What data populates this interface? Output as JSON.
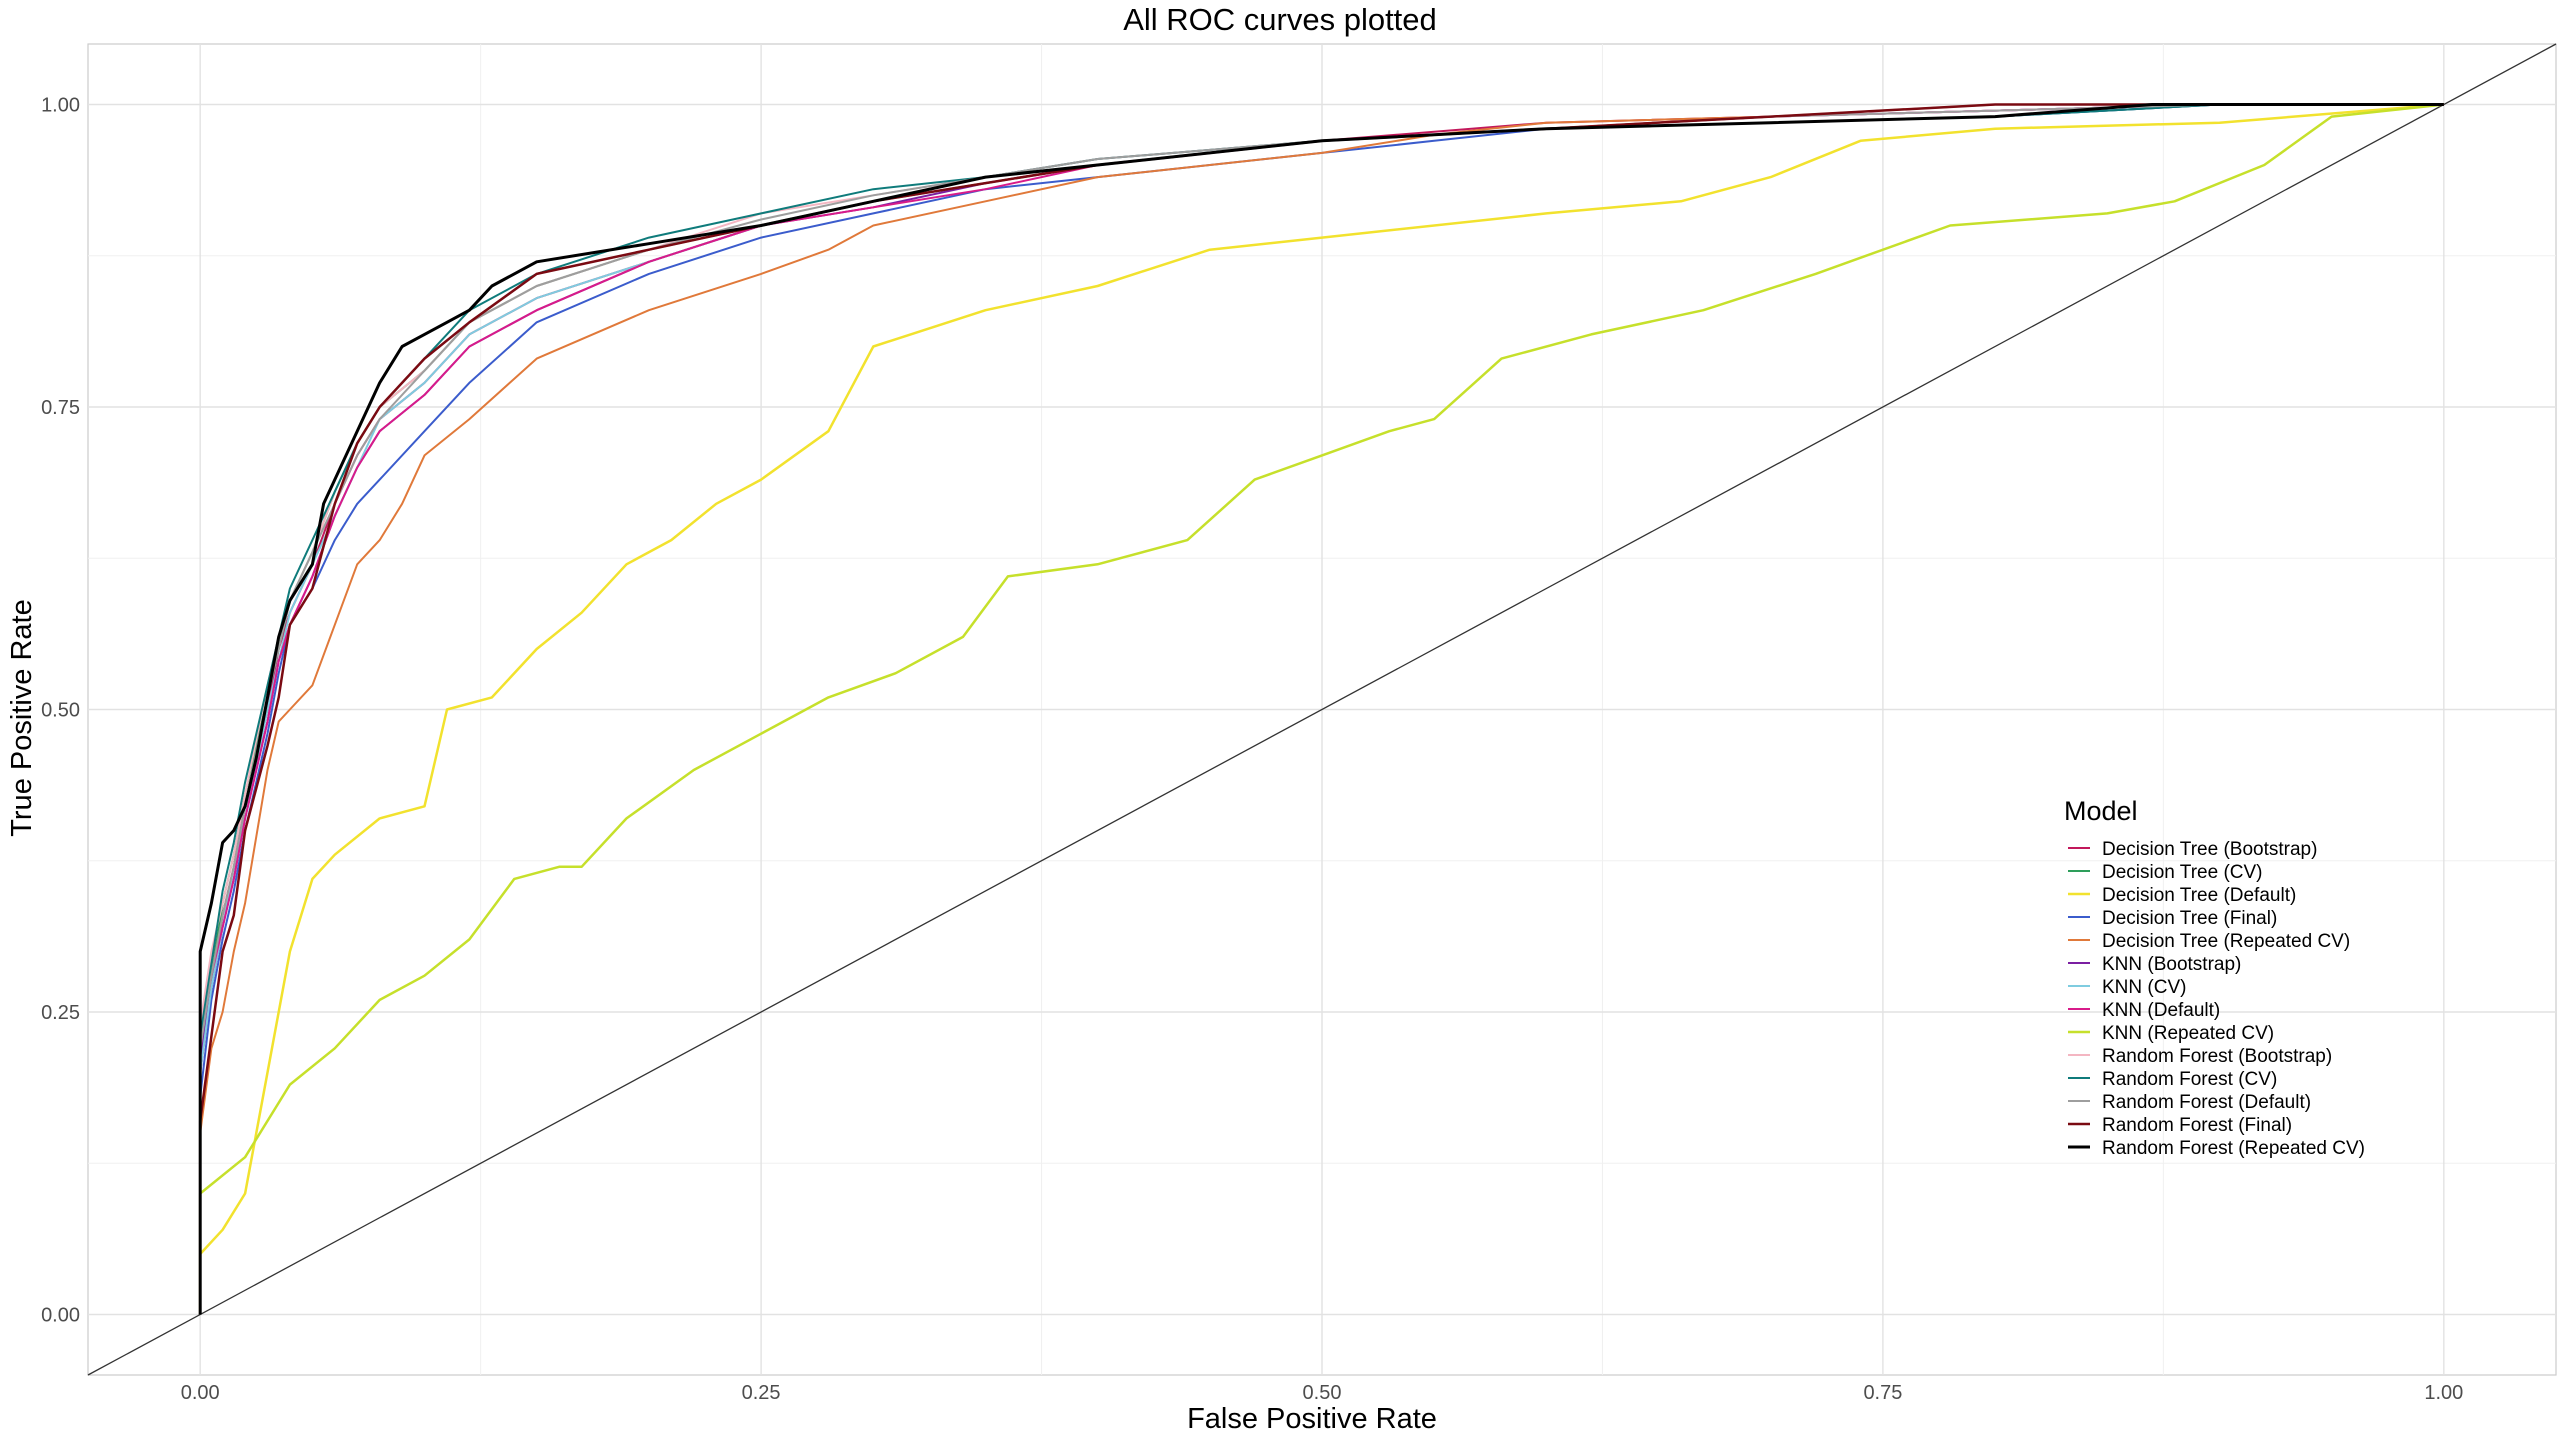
{
  "chart_data": {
    "type": "line",
    "title": "All ROC curves plotted",
    "xlabel": "False Positive Rate",
    "ylabel": "True Positive Rate",
    "xlim": [
      -0.05,
      1.05
    ],
    "ylim": [
      -0.05,
      1.05
    ],
    "x_ticks": [
      0.0,
      0.25,
      0.5,
      0.75,
      1.0
    ],
    "y_ticks": [
      0.0,
      0.25,
      0.5,
      0.75,
      1.0
    ],
    "x_tick_labels": [
      "0.00",
      "0.25",
      "0.50",
      "0.75",
      "1.00"
    ],
    "y_tick_labels": [
      "0.00",
      "0.25",
      "0.50",
      "0.75",
      "1.00"
    ],
    "grid": true,
    "legend_title": "Model",
    "legend_position": "right",
    "reference_line": {
      "x": [
        -0.05,
        1.05
      ],
      "y": [
        -0.05,
        1.05
      ],
      "color": "#333333"
    },
    "series": [
      {
        "name": "Decision Tree (Bootstrap)",
        "color": "#C2185B",
        "width": 2,
        "x": [
          0,
          0,
          0.005,
          0.01,
          0.015,
          0.02,
          0.03,
          0.035,
          0.04,
          0.05,
          0.06,
          0.07,
          0.08,
          0.1,
          0.12,
          0.15,
          0.2,
          0.25,
          0.3,
          0.35,
          0.4,
          0.5,
          0.6,
          0.7,
          0.8,
          0.9,
          1
        ],
        "y": [
          0,
          0.2,
          0.27,
          0.33,
          0.37,
          0.42,
          0.5,
          0.55,
          0.58,
          0.62,
          0.67,
          0.71,
          0.74,
          0.77,
          0.81,
          0.84,
          0.87,
          0.9,
          0.92,
          0.935,
          0.95,
          0.97,
          0.985,
          0.99,
          0.995,
          1,
          1
        ]
      },
      {
        "name": "Decision Tree (CV)",
        "color": "#2E9E5B",
        "width": 2,
        "x": [
          0,
          0,
          0.005,
          0.01,
          0.015,
          0.02,
          0.03,
          0.035,
          0.04,
          0.05,
          0.06,
          0.07,
          0.08,
          0.1,
          0.12,
          0.15,
          0.2,
          0.25,
          0.3,
          0.35,
          0.4,
          0.5,
          0.6,
          0.7,
          0.8,
          0.9,
          1
        ],
        "y": [
          0,
          0.22,
          0.28,
          0.34,
          0.38,
          0.43,
          0.51,
          0.55,
          0.59,
          0.63,
          0.68,
          0.72,
          0.75,
          0.78,
          0.82,
          0.85,
          0.88,
          0.9,
          0.92,
          0.935,
          0.95,
          0.97,
          0.98,
          0.985,
          0.99,
          1,
          1
        ]
      },
      {
        "name": "Decision Tree (Default)",
        "color": "#F2E22E",
        "width": 2.5,
        "x": [
          0,
          0,
          0.01,
          0.02,
          0.03,
          0.04,
          0.05,
          0.06,
          0.08,
          0.1,
          0.11,
          0.13,
          0.15,
          0.17,
          0.19,
          0.21,
          0.23,
          0.25,
          0.28,
          0.3,
          0.35,
          0.4,
          0.45,
          0.5,
          0.6,
          0.66,
          0.7,
          0.74,
          0.8,
          0.9,
          1
        ],
        "y": [
          0,
          0.05,
          0.07,
          0.1,
          0.2,
          0.3,
          0.36,
          0.38,
          0.41,
          0.42,
          0.5,
          0.51,
          0.55,
          0.58,
          0.62,
          0.64,
          0.67,
          0.69,
          0.73,
          0.8,
          0.83,
          0.85,
          0.88,
          0.89,
          0.91,
          0.92,
          0.94,
          0.97,
          0.98,
          0.985,
          1
        ]
      },
      {
        "name": "Decision Tree (Final)",
        "color": "#3B5CCC",
        "width": 2,
        "x": [
          0,
          0,
          0.005,
          0.01,
          0.015,
          0.02,
          0.03,
          0.035,
          0.04,
          0.05,
          0.06,
          0.07,
          0.08,
          0.1,
          0.12,
          0.15,
          0.2,
          0.25,
          0.3,
          0.35,
          0.4,
          0.5,
          0.55,
          0.6,
          0.7,
          0.8,
          0.9,
          1
        ],
        "y": [
          0,
          0.18,
          0.26,
          0.31,
          0.35,
          0.4,
          0.48,
          0.53,
          0.57,
          0.6,
          0.64,
          0.67,
          0.69,
          0.73,
          0.77,
          0.82,
          0.86,
          0.89,
          0.91,
          0.93,
          0.94,
          0.96,
          0.97,
          0.98,
          0.985,
          0.99,
          1,
          1
        ]
      },
      {
        "name": "Decision Tree (Repeated CV)",
        "color": "#E0793A",
        "width": 2,
        "x": [
          0,
          0,
          0.005,
          0.01,
          0.015,
          0.02,
          0.03,
          0.035,
          0.04,
          0.05,
          0.06,
          0.07,
          0.08,
          0.09,
          0.1,
          0.12,
          0.15,
          0.2,
          0.25,
          0.28,
          0.3,
          0.35,
          0.4,
          0.5,
          0.55,
          0.6,
          0.7,
          0.8,
          0.9,
          1
        ],
        "y": [
          0,
          0.15,
          0.22,
          0.25,
          0.3,
          0.34,
          0.45,
          0.49,
          0.5,
          0.52,
          0.57,
          0.62,
          0.64,
          0.67,
          0.71,
          0.74,
          0.79,
          0.83,
          0.86,
          0.88,
          0.9,
          0.92,
          0.94,
          0.96,
          0.975,
          0.985,
          0.99,
          1,
          1,
          1
        ]
      },
      {
        "name": "KNN (Bootstrap)",
        "color": "#7B1FA2",
        "width": 2,
        "x": [
          0,
          0,
          0.005,
          0.01,
          0.015,
          0.02,
          0.03,
          0.035,
          0.04,
          0.05,
          0.06,
          0.07,
          0.08,
          0.1,
          0.12,
          0.15,
          0.2,
          0.25,
          0.3,
          0.35,
          0.4,
          0.5,
          0.6,
          0.7,
          0.8,
          0.9,
          1
        ],
        "y": [
          0,
          0.21,
          0.27,
          0.32,
          0.36,
          0.41,
          0.49,
          0.54,
          0.57,
          0.61,
          0.66,
          0.7,
          0.73,
          0.76,
          0.8,
          0.83,
          0.87,
          0.9,
          0.915,
          0.935,
          0.95,
          0.97,
          0.98,
          0.99,
          0.995,
          1,
          1
        ]
      },
      {
        "name": "KNN (CV)",
        "color": "#7FCCE0",
        "width": 2,
        "x": [
          0,
          0,
          0.005,
          0.01,
          0.015,
          0.02,
          0.03,
          0.035,
          0.04,
          0.05,
          0.06,
          0.07,
          0.08,
          0.1,
          0.12,
          0.15,
          0.2,
          0.25,
          0.3,
          0.35,
          0.4,
          0.5,
          0.6,
          0.7,
          0.8,
          0.9,
          1
        ],
        "y": [
          0,
          0.2,
          0.27,
          0.32,
          0.37,
          0.41,
          0.5,
          0.54,
          0.58,
          0.62,
          0.66,
          0.7,
          0.74,
          0.77,
          0.81,
          0.84,
          0.87,
          0.9,
          0.92,
          0.935,
          0.95,
          0.97,
          0.98,
          0.99,
          0.995,
          1,
          1
        ]
      },
      {
        "name": "KNN (Default)",
        "color": "#D81B8A",
        "width": 2,
        "x": [
          0,
          0,
          0.005,
          0.01,
          0.015,
          0.02,
          0.03,
          0.035,
          0.04,
          0.05,
          0.06,
          0.07,
          0.08,
          0.1,
          0.12,
          0.15,
          0.2,
          0.25,
          0.3,
          0.35,
          0.4,
          0.5,
          0.6,
          0.7,
          0.8,
          0.9,
          1
        ],
        "y": [
          0,
          0.22,
          0.28,
          0.32,
          0.36,
          0.41,
          0.49,
          0.54,
          0.57,
          0.61,
          0.66,
          0.7,
          0.73,
          0.76,
          0.8,
          0.83,
          0.87,
          0.9,
          0.915,
          0.93,
          0.95,
          0.97,
          0.98,
          0.99,
          0.995,
          1,
          1
        ]
      },
      {
        "name": "KNN (Repeated CV)",
        "color": "#C6E02B",
        "width": 2.5,
        "x": [
          0,
          0,
          0.02,
          0.04,
          0.06,
          0.08,
          0.1,
          0.12,
          0.14,
          0.16,
          0.17,
          0.19,
          0.22,
          0.25,
          0.28,
          0.31,
          0.34,
          0.36,
          0.4,
          0.44,
          0.47,
          0.5,
          0.53,
          0.55,
          0.58,
          0.62,
          0.67,
          0.72,
          0.78,
          0.85,
          0.88,
          0.92,
          0.95,
          1
        ],
        "y": [
          0,
          0.1,
          0.13,
          0.19,
          0.22,
          0.26,
          0.28,
          0.31,
          0.36,
          0.37,
          0.37,
          0.41,
          0.45,
          0.48,
          0.51,
          0.53,
          0.56,
          0.61,
          0.62,
          0.64,
          0.69,
          0.71,
          0.73,
          0.74,
          0.79,
          0.81,
          0.83,
          0.86,
          0.9,
          0.91,
          0.92,
          0.95,
          0.99,
          1
        ]
      },
      {
        "name": "Random Forest (Bootstrap)",
        "color": "#F4B6C2",
        "width": 2,
        "x": [
          0,
          0,
          0.005,
          0.01,
          0.015,
          0.02,
          0.03,
          0.035,
          0.04,
          0.05,
          0.06,
          0.07,
          0.08,
          0.1,
          0.12,
          0.15,
          0.2,
          0.25,
          0.3,
          0.35,
          0.4,
          0.5,
          0.6,
          0.7,
          0.8,
          0.9,
          1
        ],
        "y": [
          0,
          0.24,
          0.3,
          0.34,
          0.38,
          0.43,
          0.52,
          0.56,
          0.59,
          0.63,
          0.68,
          0.72,
          0.75,
          0.78,
          0.82,
          0.85,
          0.88,
          0.91,
          0.925,
          0.94,
          0.955,
          0.97,
          0.98,
          0.99,
          0.995,
          1,
          1
        ]
      },
      {
        "name": "Random Forest (CV)",
        "color": "#0F7B7B",
        "width": 2,
        "x": [
          0,
          0,
          0.005,
          0.01,
          0.015,
          0.02,
          0.03,
          0.035,
          0.04,
          0.05,
          0.06,
          0.07,
          0.08,
          0.1,
          0.12,
          0.15,
          0.2,
          0.25,
          0.3,
          0.35,
          0.4,
          0.5,
          0.6,
          0.7,
          0.8,
          0.9,
          1
        ],
        "y": [
          0,
          0.23,
          0.29,
          0.35,
          0.39,
          0.44,
          0.52,
          0.56,
          0.6,
          0.64,
          0.68,
          0.72,
          0.75,
          0.79,
          0.83,
          0.86,
          0.89,
          0.91,
          0.93,
          0.94,
          0.955,
          0.97,
          0.98,
          0.985,
          0.99,
          1,
          1
        ]
      },
      {
        "name": "Random Forest (Default)",
        "color": "#9E9E9E",
        "width": 2,
        "x": [
          0,
          0,
          0.005,
          0.01,
          0.015,
          0.02,
          0.03,
          0.035,
          0.04,
          0.05,
          0.06,
          0.07,
          0.08,
          0.1,
          0.12,
          0.15,
          0.2,
          0.25,
          0.3,
          0.35,
          0.4,
          0.5,
          0.6,
          0.7,
          0.8,
          0.9,
          1
        ],
        "y": [
          0,
          0.22,
          0.28,
          0.33,
          0.37,
          0.42,
          0.51,
          0.55,
          0.59,
          0.63,
          0.67,
          0.71,
          0.74,
          0.78,
          0.82,
          0.85,
          0.88,
          0.905,
          0.925,
          0.94,
          0.955,
          0.97,
          0.98,
          0.99,
          0.995,
          1,
          1
        ]
      },
      {
        "name": "Random Forest (Final)",
        "color": "#7A0A12",
        "width": 2.5,
        "x": [
          0,
          0,
          0.005,
          0.01,
          0.015,
          0.02,
          0.03,
          0.035,
          0.04,
          0.05,
          0.06,
          0.07,
          0.08,
          0.1,
          0.12,
          0.15,
          0.2,
          0.25,
          0.3,
          0.35,
          0.4,
          0.5,
          0.6,
          0.7,
          0.8,
          0.9,
          1
        ],
        "y": [
          0,
          0.16,
          0.23,
          0.3,
          0.33,
          0.4,
          0.47,
          0.51,
          0.57,
          0.6,
          0.67,
          0.72,
          0.75,
          0.79,
          0.82,
          0.86,
          0.88,
          0.9,
          0.92,
          0.935,
          0.95,
          0.97,
          0.98,
          0.99,
          1,
          1,
          1
        ]
      },
      {
        "name": "Random Forest (Repeated CV)",
        "color": "#000000",
        "width": 3,
        "x": [
          0,
          0,
          0.005,
          0.01,
          0.015,
          0.02,
          0.025,
          0.03,
          0.035,
          0.04,
          0.05,
          0.055,
          0.06,
          0.07,
          0.08,
          0.09,
          0.1,
          0.11,
          0.12,
          0.13,
          0.15,
          0.2,
          0.25,
          0.3,
          0.35,
          0.4,
          0.5,
          0.6,
          0.7,
          0.8,
          0.87,
          0.9,
          1
        ],
        "y": [
          0,
          0.3,
          0.34,
          0.39,
          0.4,
          0.42,
          0.46,
          0.51,
          0.56,
          0.59,
          0.62,
          0.67,
          0.69,
          0.73,
          0.77,
          0.8,
          0.81,
          0.82,
          0.83,
          0.85,
          0.87,
          0.885,
          0.9,
          0.92,
          0.94,
          0.95,
          0.97,
          0.98,
          0.985,
          0.99,
          1,
          1,
          1
        ]
      }
    ]
  }
}
